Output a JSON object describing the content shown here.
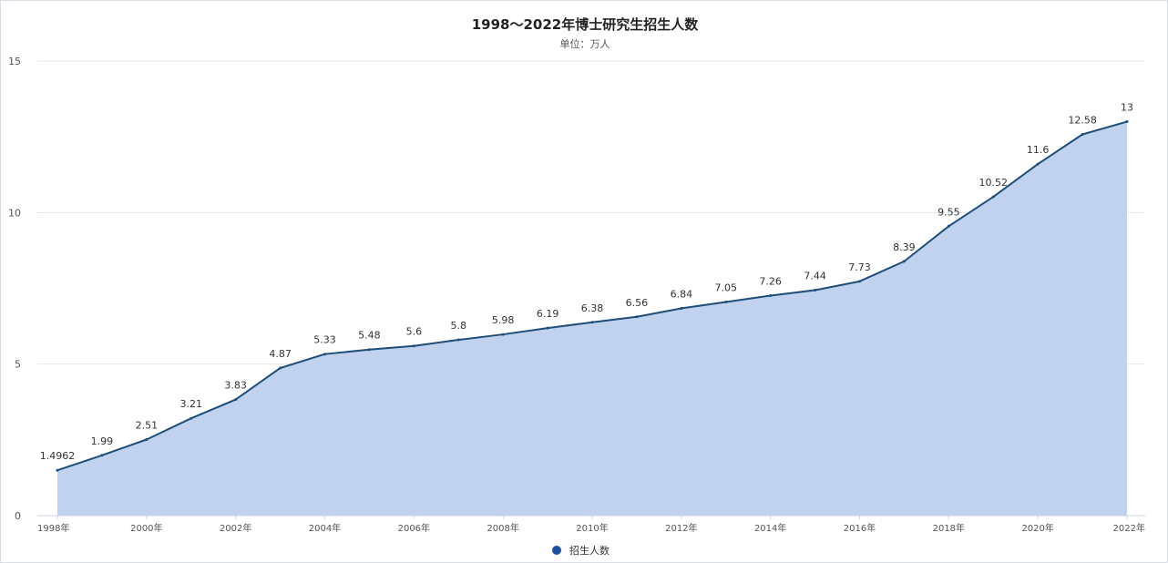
{
  "chart_data": {
    "type": "area",
    "title": "1998～2022年博士研究生招生人数",
    "subtitle": "单位：万人",
    "series": [
      {
        "name": "招生人数",
        "color": "#1f4e79",
        "fill": "#c1d2ee",
        "labels": [
          "1.4962",
          "1.99",
          "2.51",
          "3.21",
          "3.83",
          "4.87",
          "5.33",
          "5.48",
          "5.6",
          "5.8",
          "5.98",
          "6.19",
          "6.38",
          "6.56",
          "6.84",
          "7.05",
          "7.26",
          "7.44",
          "7.73",
          "8.39",
          "9.55",
          "10.52",
          "11.6",
          "12.58",
          "13"
        ],
        "values": [
          1.4962,
          1.99,
          2.51,
          3.21,
          3.83,
          4.87,
          5.33,
          5.48,
          5.6,
          5.8,
          5.98,
          6.19,
          6.38,
          6.56,
          6.84,
          7.05,
          7.26,
          7.44,
          7.73,
          8.39,
          9.55,
          10.52,
          11.6,
          12.58,
          13
        ]
      }
    ],
    "x": [
      1998,
      1999,
      2000,
      2001,
      2002,
      2003,
      2004,
      2005,
      2006,
      2007,
      2008,
      2009,
      2010,
      2011,
      2012,
      2013,
      2014,
      2015,
      2016,
      2017,
      2018,
      2019,
      2020,
      2021,
      2022
    ],
    "x_tick_labels": [
      "1998年",
      "2000年",
      "2002年",
      "2004年",
      "2006年",
      "2008年",
      "2010年",
      "2012年",
      "2014年",
      "2016年",
      "2018年",
      "2020年",
      "2022年"
    ],
    "y_ticks": [
      "0",
      "5",
      "10",
      "15"
    ],
    "ylim": [
      0,
      15
    ],
    "grid": true,
    "legend_position": "bottom-center",
    "legend_marker_color": "#1f4fa0"
  }
}
